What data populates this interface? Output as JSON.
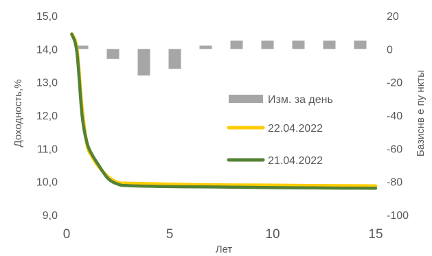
{
  "chart_data": {
    "type": "line",
    "xlabel": "Лет",
    "ylabel_left": "Доходность,%",
    "ylabel_right": "Базиснв е пу нкты",
    "xlim": [
      0,
      15
    ],
    "ylim_left": [
      9.0,
      15.0
    ],
    "ylim_right": [
      -100,
      20
    ],
    "x_ticks": [
      "0",
      "5",
      "10",
      "15"
    ],
    "y_left_ticks": [
      "15,0",
      "14,0",
      "13,0",
      "12,0",
      "11,0",
      "10,0",
      "9,0"
    ],
    "y_right_ticks": [
      "20",
      "0",
      "-20",
      "-40",
      "-60",
      "-80",
      "-100"
    ],
    "grid": false,
    "legend_position": "center-right",
    "series": [
      {
        "name": "Изм. за день",
        "kind": "bar",
        "axis": "right",
        "color": "#a6a6a6",
        "x": [
          0.75,
          2.25,
          3.75,
          5.25,
          6.75,
          8.25,
          9.75,
          11.25,
          12.75,
          14.25
        ],
        "values": [
          2,
          -6,
          -16,
          -12,
          2,
          5,
          5,
          5,
          5,
          5
        ]
      },
      {
        "name": "22.04.2022",
        "kind": "line",
        "axis": "left",
        "color": "#ffcc00",
        "x": [
          0.25,
          0.5,
          0.75,
          1,
          1.25,
          1.5,
          2,
          2.5,
          3,
          5,
          7,
          10,
          12,
          15
        ],
        "values": [
          14.45,
          14.0,
          12.2,
          11.1,
          10.75,
          10.5,
          10.15,
          9.97,
          9.95,
          9.92,
          9.9,
          9.89,
          9.88,
          9.87
        ]
      },
      {
        "name": "21.04.2022",
        "kind": "line",
        "axis": "left",
        "color": "#548235",
        "x": [
          0.25,
          0.5,
          0.75,
          1,
          1.25,
          1.5,
          2,
          2.5,
          3,
          5,
          7,
          10,
          12,
          15
        ],
        "values": [
          14.45,
          13.9,
          12.0,
          11.15,
          10.8,
          10.55,
          10.1,
          9.92,
          9.88,
          9.85,
          9.84,
          9.82,
          9.81,
          9.8
        ]
      }
    ]
  }
}
